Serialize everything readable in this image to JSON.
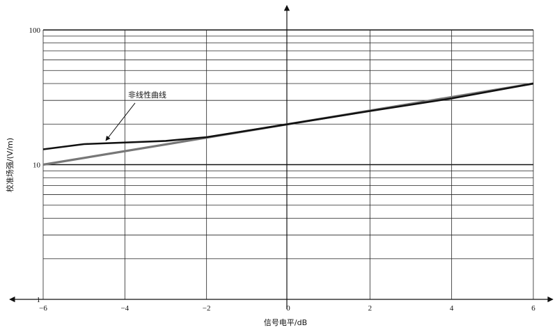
{
  "chart_data": {
    "type": "line",
    "title": "",
    "xlabel": "信号电平/dB",
    "ylabel": "校准场强/(V/m)",
    "xlim": [
      -6,
      6
    ],
    "ylim": [
      1,
      100
    ],
    "y_scale": "log",
    "grid": true,
    "x_ticks": [
      -6,
      -4,
      -2,
      0,
      2,
      4,
      6
    ],
    "x_tick_labels": [
      "−6",
      "−4",
      "−2",
      "0",
      "2",
      "4",
      "6"
    ],
    "y_ticks": [
      1,
      10,
      100
    ],
    "y_tick_labels": [
      "1",
      "10",
      "100"
    ],
    "series": [
      {
        "name": "",
        "color": "#777777",
        "x": [
          -6,
          0,
          6
        ],
        "y": [
          10,
          20,
          40
        ]
      },
      {
        "name": "非线性曲线",
        "color": "#111111",
        "x": [
          -6,
          -5,
          -3,
          -2,
          0,
          2,
          4,
          6
        ],
        "y": [
          13,
          14.2,
          15,
          16,
          20,
          25,
          31,
          40
        ]
      }
    ],
    "annotations": [
      {
        "text": "非线性曲线",
        "series": "非线性曲线",
        "points_to_x": -4.5
      }
    ]
  }
}
